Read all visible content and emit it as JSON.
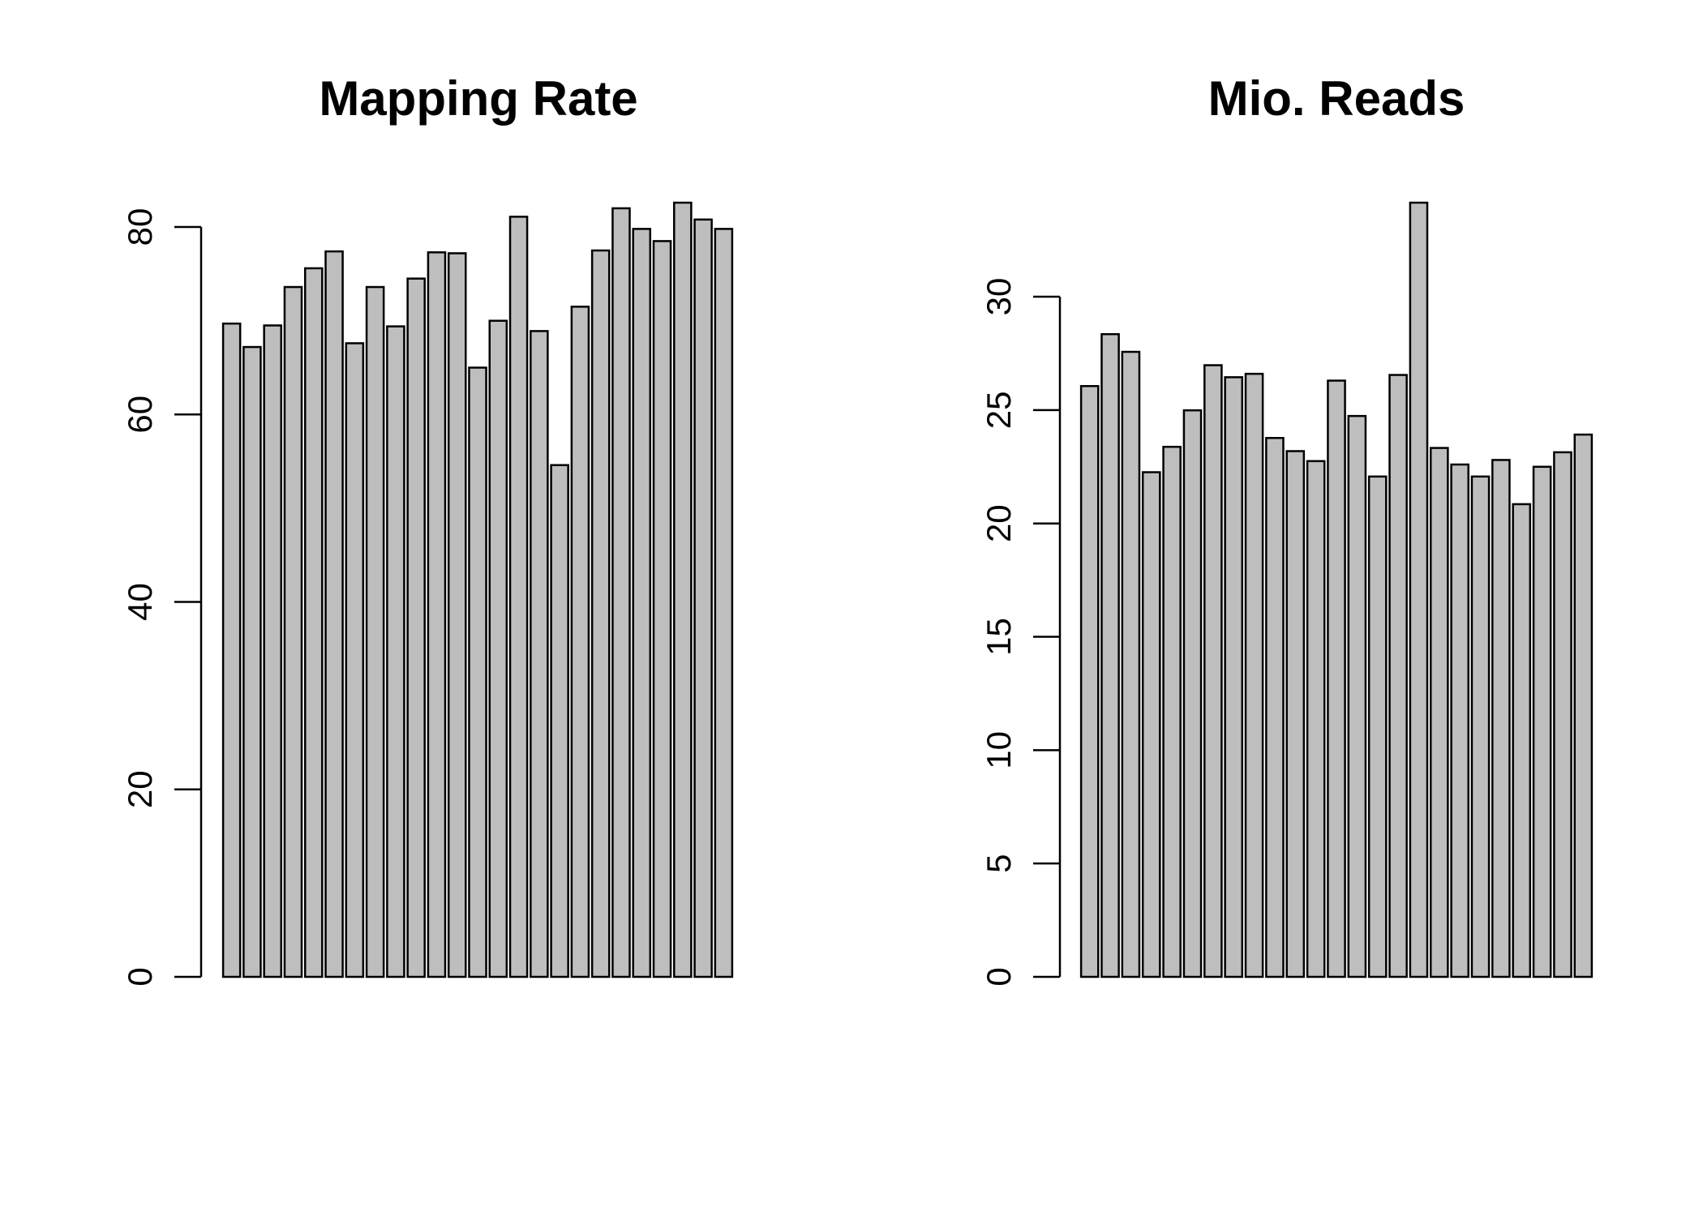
{
  "chart_data": [
    {
      "type": "bar",
      "title": "Mapping Rate",
      "color": "#bebebe",
      "values": [
        69.7,
        67.2,
        69.5,
        73.6,
        75.6,
        77.4,
        67.6,
        73.6,
        69.4,
        74.5,
        77.3,
        77.2,
        65.0,
        70.0,
        81.1,
        68.9,
        54.6,
        71.5,
        77.5,
        82.0,
        79.8,
        78.5,
        82.6,
        80.8,
        79.8
      ],
      "ylim": [
        0,
        82.6
      ],
      "yticks": [
        0,
        20,
        40,
        60,
        80
      ]
    },
    {
      "type": "bar",
      "title": "Mio. Reads",
      "color": "#bebebe",
      "values": [
        26.06,
        28.35,
        27.57,
        22.26,
        23.38,
        24.99,
        26.98,
        26.45,
        26.6,
        23.77,
        23.19,
        22.75,
        26.3,
        24.74,
        22.07,
        26.55,
        34.15,
        23.33,
        22.6,
        22.07,
        22.8,
        20.85,
        22.5,
        23.14,
        23.92
      ],
      "ylim": [
        0,
        34.15
      ],
      "yticks": [
        0,
        5,
        10,
        15,
        20,
        25,
        30
      ]
    }
  ]
}
